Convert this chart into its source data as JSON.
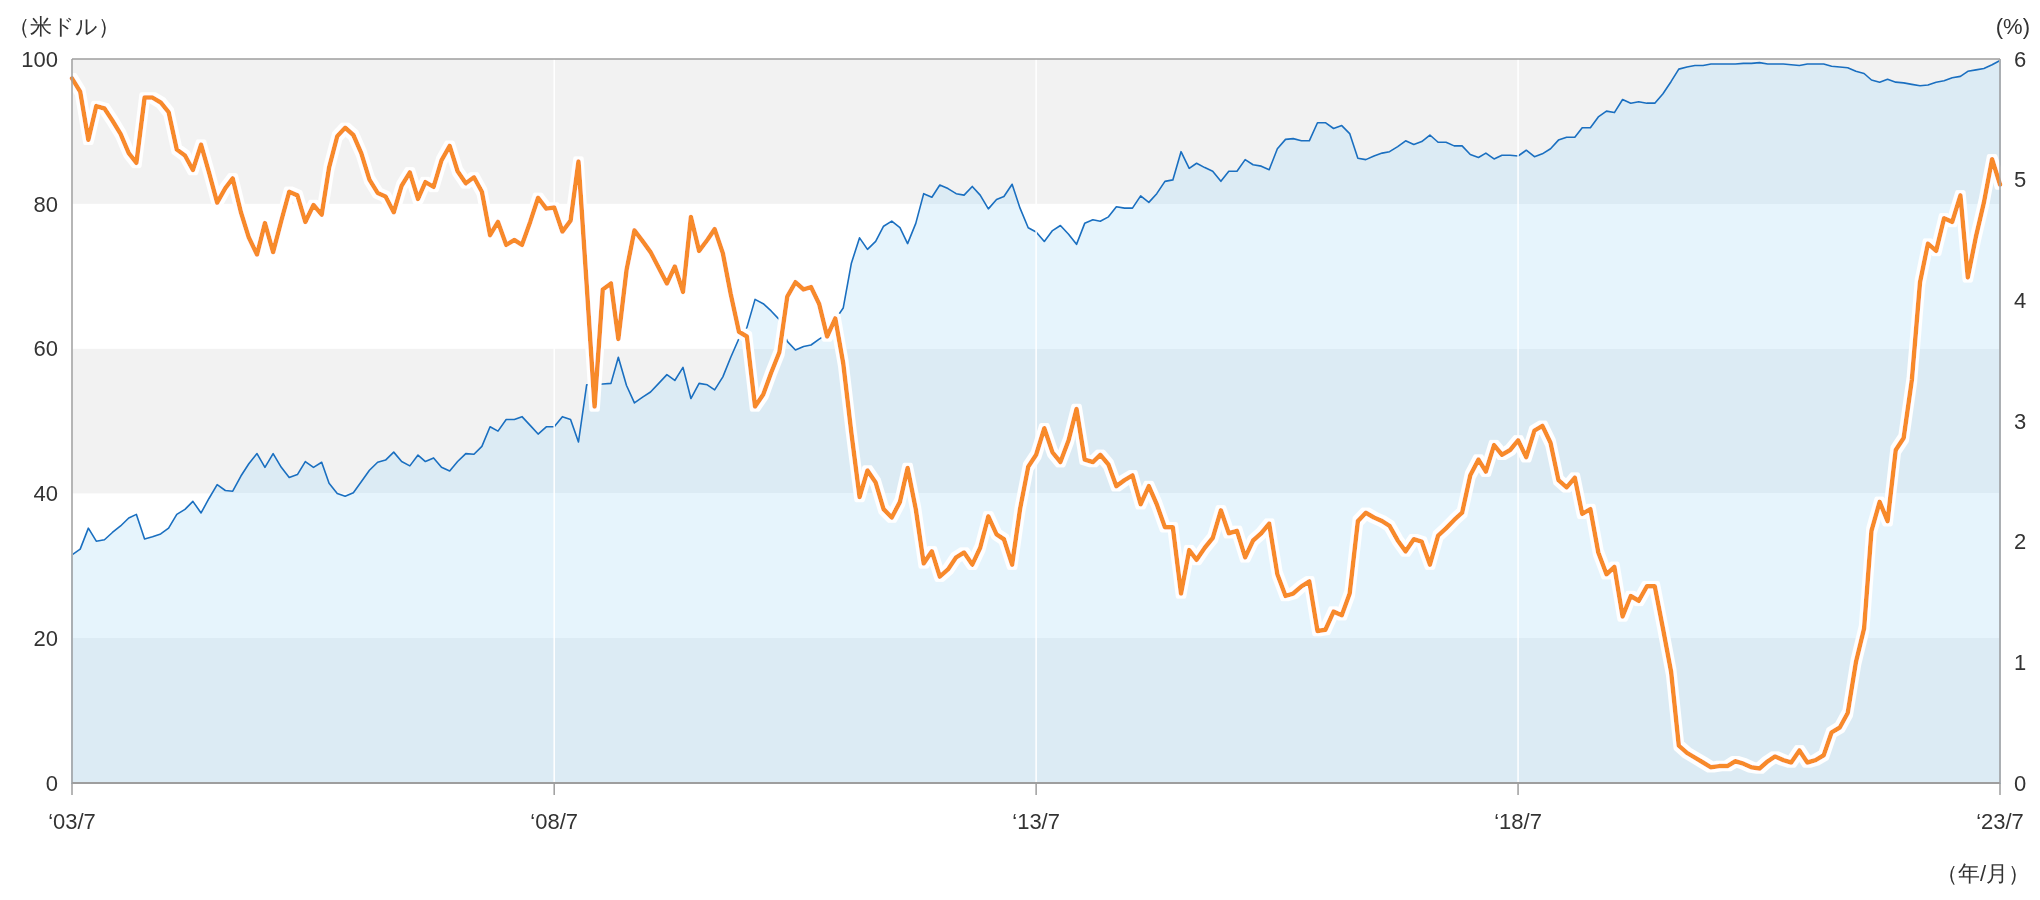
{
  "chart_data": {
    "type": "area",
    "ylabel": "（米ドル）",
    "y2label": "(%)",
    "xlabel": "（年/月）",
    "xlim": [
      "2003-07",
      "2023-07"
    ],
    "xticks": [
      {
        "value": "2003-07",
        "label": "‘03/7"
      },
      {
        "value": "2008-07",
        "label": "‘08/7"
      },
      {
        "value": "2013-07",
        "label": "‘13/7"
      },
      {
        "value": "2018-07",
        "label": "‘18/7"
      },
      {
        "value": "2023-07",
        "label": "‘23/7"
      }
    ],
    "ylim": [
      0,
      100
    ],
    "yticks": [
      0,
      20,
      40,
      60,
      80,
      100
    ],
    "y2lim": [
      0,
      6
    ],
    "y2ticks": [
      0,
      1,
      2,
      3,
      4,
      5,
      6
    ],
    "grid": true,
    "x": [
      "2003-07",
      "2003-08",
      "2003-09",
      "2003-10",
      "2003-11",
      "2003-12",
      "2004-01",
      "2004-02",
      "2004-03",
      "2004-04",
      "2004-05",
      "2004-06",
      "2004-07",
      "2004-08",
      "2004-09",
      "2004-10",
      "2004-11",
      "2004-12",
      "2005-01",
      "2005-02",
      "2005-03",
      "2005-04",
      "2005-05",
      "2005-06",
      "2005-07",
      "2005-08",
      "2005-09",
      "2005-10",
      "2005-11",
      "2005-12",
      "2006-01",
      "2006-02",
      "2006-03",
      "2006-04",
      "2006-05",
      "2006-06",
      "2006-07",
      "2006-08",
      "2006-09",
      "2006-10",
      "2006-11",
      "2006-12",
      "2007-01",
      "2007-02",
      "2007-03",
      "2007-04",
      "2007-05",
      "2007-06",
      "2007-07",
      "2007-08",
      "2007-09",
      "2007-10",
      "2007-11",
      "2007-12",
      "2008-01",
      "2008-02",
      "2008-03",
      "2008-04",
      "2008-05",
      "2008-06",
      "2008-07",
      "2008-08",
      "2008-09",
      "2008-10",
      "2008-11",
      "2008-12",
      "2009-01",
      "2009-02",
      "2009-03",
      "2009-04",
      "2009-05",
      "2009-06",
      "2009-07",
      "2009-08",
      "2009-09",
      "2009-10",
      "2009-11",
      "2009-12",
      "2010-01",
      "2010-02",
      "2010-03",
      "2010-04",
      "2010-05",
      "2010-06",
      "2010-07",
      "2010-08",
      "2010-09",
      "2010-10",
      "2010-11",
      "2010-12",
      "2011-01",
      "2011-02",
      "2011-03",
      "2011-04",
      "2011-05",
      "2011-06",
      "2011-07",
      "2011-08",
      "2011-09",
      "2011-10",
      "2011-11",
      "2011-12",
      "2012-01",
      "2012-02",
      "2012-03",
      "2012-04",
      "2012-05",
      "2012-06",
      "2012-07",
      "2012-08",
      "2012-09",
      "2012-10",
      "2012-11",
      "2012-12",
      "2013-01",
      "2013-02",
      "2013-03",
      "2013-04",
      "2013-05",
      "2013-06",
      "2013-07",
      "2013-08",
      "2013-09",
      "2013-10",
      "2013-11",
      "2013-12",
      "2014-01",
      "2014-02",
      "2014-03",
      "2014-04",
      "2014-05",
      "2014-06",
      "2014-07",
      "2014-08",
      "2014-09",
      "2014-10",
      "2014-11",
      "2014-12",
      "2015-01",
      "2015-02",
      "2015-03",
      "2015-04",
      "2015-05",
      "2015-06",
      "2015-07",
      "2015-08",
      "2015-09",
      "2015-10",
      "2015-11",
      "2015-12",
      "2016-01",
      "2016-02",
      "2016-03",
      "2016-04",
      "2016-05",
      "2016-06",
      "2016-07",
      "2016-08",
      "2016-09",
      "2016-10",
      "2016-11",
      "2016-12",
      "2017-01",
      "2017-02",
      "2017-03",
      "2017-04",
      "2017-05",
      "2017-06",
      "2017-07",
      "2017-08",
      "2017-09",
      "2017-10",
      "2017-11",
      "2017-12",
      "2018-01",
      "2018-02",
      "2018-03",
      "2018-04",
      "2018-05",
      "2018-06",
      "2018-07",
      "2018-08",
      "2018-09",
      "2018-10",
      "2018-11",
      "2018-12",
      "2019-01",
      "2019-02",
      "2019-03",
      "2019-04",
      "2019-05",
      "2019-06",
      "2019-07",
      "2019-08",
      "2019-09",
      "2019-10",
      "2019-11",
      "2019-12",
      "2020-01",
      "2020-02",
      "2020-03",
      "2020-04",
      "2020-05",
      "2020-06",
      "2020-07",
      "2020-08",
      "2020-09",
      "2020-10",
      "2020-11",
      "2020-12",
      "2021-01",
      "2021-02",
      "2021-03",
      "2021-04",
      "2021-05",
      "2021-06",
      "2021-07",
      "2021-08",
      "2021-09",
      "2021-10",
      "2021-11",
      "2021-12",
      "2022-01",
      "2022-02",
      "2022-03",
      "2022-04",
      "2022-05",
      "2022-06",
      "2022-07",
      "2022-08",
      "2022-09",
      "2022-10",
      "2022-11",
      "2022-12",
      "2023-01",
      "2023-02",
      "2023-03",
      "2023-04",
      "2023-05",
      "2023-06",
      "2023-07"
    ],
    "series": [
      {
        "color": "#1a6fc0",
        "values": [
          31.5,
          32.3,
          35.2,
          33.4,
          33.6,
          34.6,
          35.5,
          36.6,
          37.1,
          33.7,
          34,
          34.4,
          35.2,
          37.1,
          37.8,
          38.9,
          37.3,
          39.3,
          41.2,
          40.4,
          40.3,
          42.4,
          44.1,
          45.5,
          43.6,
          45.5,
          43.6,
          42.2,
          42.6,
          44.4,
          43.6,
          44.3,
          41.4,
          40,
          39.6,
          40.1,
          41.6,
          43.2,
          44.3,
          44.6,
          45.7,
          44.4,
          43.8,
          45.3,
          44.4,
          44.9,
          43.6,
          43.1,
          44.4,
          45.5,
          45.4,
          46.5,
          49.2,
          48.6,
          50.2,
          50.2,
          50.6,
          49.4,
          48.2,
          49.2,
          49.2,
          50.6,
          50.2,
          47.1,
          55,
          55,
          55.1,
          55.2,
          58.8,
          54.9,
          52.5,
          53.3,
          54,
          55.2,
          56.4,
          55.6,
          57.4,
          53.1,
          55.2,
          55,
          54.3,
          56.1,
          58.8,
          61.4,
          62.9,
          66.8,
          66.2,
          65.2,
          64,
          61,
          59.8,
          60.3,
          60.5,
          61.3,
          62,
          64,
          65.6,
          71.8,
          75.3,
          73.7,
          74.8,
          76.9,
          77.6,
          76.7,
          74.5,
          77.3,
          81.4,
          80.9,
          82.6,
          82.1,
          81.4,
          81.2,
          82.4,
          81.2,
          79.3,
          80.6,
          81,
          82.7,
          79.4,
          76.7,
          76.1,
          74.8,
          76.3,
          77,
          75.8,
          74.4,
          77.3,
          77.8,
          77.6,
          78.2,
          79.6,
          79.4,
          79.4,
          81.1,
          80.2,
          81.4,
          83.1,
          83.3,
          87.2,
          84.9,
          85.6,
          85,
          84.5,
          83.1,
          84.5,
          84.5,
          86.1,
          85.4,
          85.2,
          84.7,
          87.6,
          88.9,
          89,
          88.7,
          88.7,
          91.2,
          91.2,
          90.4,
          90.8,
          89.7,
          86.3,
          86.1,
          86.6,
          87,
          87.2,
          87.9,
          88.7,
          88.2,
          88.6,
          89.5,
          88.5,
          88.5,
          88,
          88,
          86.8,
          86.4,
          87,
          86.2,
          86.7,
          86.7,
          86.6,
          87.4,
          86.5,
          86.9,
          87.6,
          88.8,
          89.2,
          89.2,
          90.5,
          90.5,
          92,
          92.8,
          92.6,
          94.4,
          93.9,
          94.1,
          93.9,
          93.9,
          95.2,
          96.9,
          98.6,
          98.9,
          99.1,
          99.1,
          99.3,
          99.3,
          99.3,
          99.3,
          99.4,
          99.4,
          99.5,
          99.3,
          99.3,
          99.3,
          99.2,
          99.1,
          99.3,
          99.3,
          99.3,
          99,
          98.9,
          98.8,
          98.3,
          98,
          97.1,
          96.8,
          97.2,
          96.8,
          96.7,
          96.5,
          96.3,
          96.4,
          96.8,
          97,
          97.4,
          97.6,
          98.3,
          98.5,
          98.7,
          99.2,
          99.8
        ]
      },
      {
        "type": "line",
        "axis": "y2",
        "color": "#f78a2b",
        "values": [
          5.84,
          5.73,
          5.33,
          5.61,
          5.59,
          5.49,
          5.38,
          5.22,
          5.14,
          5.68,
          5.68,
          5.64,
          5.56,
          5.25,
          5.2,
          5.08,
          5.29,
          5.06,
          4.81,
          4.93,
          5.01,
          4.73,
          4.52,
          4.38,
          4.64,
          4.4,
          4.66,
          4.9,
          4.87,
          4.65,
          4.79,
          4.71,
          5.1,
          5.36,
          5.43,
          5.37,
          5.22,
          5,
          4.89,
          4.86,
          4.73,
          4.95,
          5.06,
          4.84,
          4.98,
          4.94,
          5.16,
          5.28,
          5.07,
          4.97,
          5.02,
          4.9,
          4.54,
          4.65,
          4.46,
          4.5,
          4.46,
          4.65,
          4.85,
          4.76,
          4.77,
          4.57,
          4.66,
          5.15,
          4.13,
          3.12,
          4.09,
          4.14,
          3.68,
          4.25,
          4.58,
          4.49,
          4.4,
          4.27,
          4.14,
          4.28,
          4.07,
          4.69,
          4.41,
          4.5,
          4.59,
          4.39,
          4.05,
          3.74,
          3.7,
          3.12,
          3.22,
          3.4,
          3.57,
          4.03,
          4.15,
          4.09,
          4.11,
          3.97,
          3.7,
          3.85,
          3.48,
          2.9,
          2.37,
          2.59,
          2.49,
          2.27,
          2.2,
          2.33,
          2.61,
          2.27,
          1.82,
          1.92,
          1.71,
          1.77,
          1.87,
          1.91,
          1.81,
          1.95,
          2.21,
          2.06,
          2.02,
          1.81,
          2.27,
          2.62,
          2.72,
          2.94,
          2.74,
          2.66,
          2.84,
          3.1,
          2.68,
          2.66,
          2.72,
          2.64,
          2.46,
          2.51,
          2.55,
          2.31,
          2.46,
          2.31,
          2.12,
          2.12,
          1.57,
          1.93,
          1.85,
          1.95,
          2.03,
          2.26,
          2.07,
          2.09,
          1.87,
          2.01,
          2.07,
          2.15,
          1.73,
          1.55,
          1.57,
          1.63,
          1.67,
          1.26,
          1.27,
          1.42,
          1.39,
          1.57,
          2.17,
          2.24,
          2.2,
          2.17,
          2.13,
          2.01,
          1.92,
          2.02,
          2,
          1.81,
          2.05,
          2.11,
          2.18,
          2.24,
          2.55,
          2.68,
          2.58,
          2.8,
          2.72,
          2.76,
          2.84,
          2.7,
          2.92,
          2.96,
          2.82,
          2.51,
          2.45,
          2.53,
          2.23,
          2.27,
          1.91,
          1.73,
          1.79,
          1.38,
          1.55,
          1.51,
          1.63,
          1.63,
          1.28,
          0.92,
          0.31,
          0.25,
          0.21,
          0.17,
          0.13,
          0.14,
          0.14,
          0.18,
          0.16,
          0.13,
          0.12,
          0.18,
          0.22,
          0.19,
          0.17,
          0.27,
          0.17,
          0.19,
          0.23,
          0.42,
          0.46,
          0.58,
          1,
          1.28,
          2.09,
          2.33,
          2.17,
          2.76,
          2.86,
          3.34,
          4.15,
          4.47,
          4.41,
          4.68,
          4.65,
          4.87,
          4.19,
          4.53,
          4.81,
          5.17,
          4.96
        ]
      }
    ]
  }
}
